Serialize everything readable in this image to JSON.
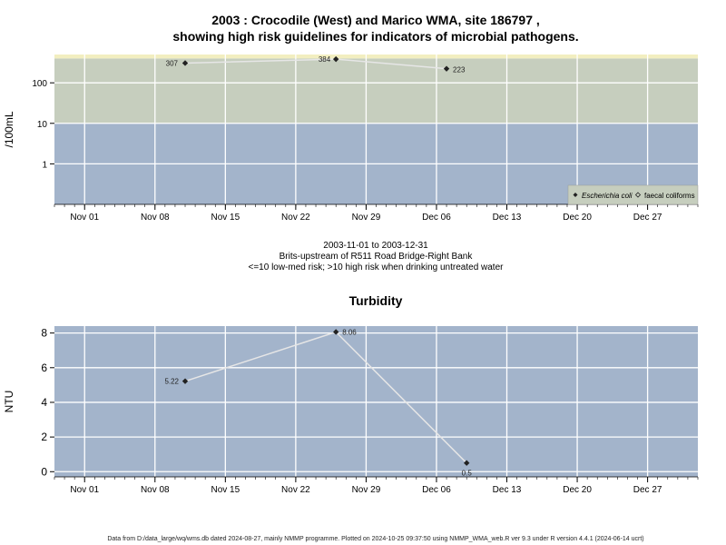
{
  "header": {
    "title_line1": "2003 : Crocodile (West) and Marico WMA, site 186797 ,",
    "title_line2": "showing high risk guidelines for indicators of microbial pathogens."
  },
  "subtitle": {
    "line1": "2003-11-01 to 2003-12-31",
    "line2": "Brits-upstream of R511 Road Bridge-Right Bank",
    "line3": "<=10 low-med risk; >10 high risk when drinking untreated water"
  },
  "footer": {
    "text": "Data from D:/data_large/wq/wms.db dated 2024-08-27, mainly NMMP programme. Plotted on 2024-10-25 09:37:50 using NMMP_WMA_web.R ver 9.3 under R version 4.4.1 (2024-06-14 ucrt)"
  },
  "colors": {
    "low_risk": "#a3b4cb",
    "high_risk": "#c6cebe",
    "top_band": "#f2eec0",
    "line": "#e6e6e6",
    "marker": "#222222"
  },
  "chart_data": [
    {
      "type": "line",
      "title": "",
      "xlabel": "",
      "ylabel": "/100mL",
      "y_scale": "log",
      "ylim": [
        0.1,
        500
      ],
      "y_ticks": [
        "1",
        "10",
        "100"
      ],
      "y_tick_values": [
        1,
        10,
        100
      ],
      "x_range": [
        "2003-10-29",
        "2004-01-01"
      ],
      "x_ticks": [
        "Nov 01",
        "Nov 08",
        "Nov 15",
        "Nov 22",
        "Nov 29",
        "Dec 06",
        "Dec 13",
        "Dec 20",
        "Dec 27"
      ],
      "x_tick_dates": [
        "2003-11-01",
        "2003-11-08",
        "2003-11-15",
        "2003-11-22",
        "2003-11-29",
        "2003-12-06",
        "2003-12-13",
        "2003-12-20",
        "2003-12-27"
      ],
      "bands": [
        {
          "from": 0.1,
          "to": 10,
          "color": "#a3b4cb"
        },
        {
          "from": 10,
          "to": 400,
          "color": "#c6cebe"
        },
        {
          "from": 400,
          "to": 500,
          "color": "#f2eec0"
        }
      ],
      "series": [
        {
          "name": "Escherichia coli",
          "marker": "filled-diamond",
          "points": [
            {
              "x": "2003-11-11",
              "y": 307,
              "label": "307"
            },
            {
              "x": "2003-11-26",
              "y": 384,
              "label": "384"
            },
            {
              "x": "2003-12-07",
              "y": 223,
              "label": "223"
            }
          ]
        }
      ],
      "legend": {
        "placement": "bottom-right",
        "entries": [
          {
            "label": "Escherichia coli",
            "marker": "filled-diamond"
          },
          {
            "label": "faecal coliforms",
            "marker": "open-diamond"
          }
        ]
      }
    },
    {
      "type": "line",
      "title": "Turbidity",
      "xlabel": "",
      "ylabel": "NTU",
      "ylim": [
        -0.3,
        8.4
      ],
      "y_ticks": [
        "0",
        "2",
        "4",
        "6",
        "8"
      ],
      "y_tick_values": [
        0,
        2,
        4,
        6,
        8
      ],
      "x_range": [
        "2003-10-29",
        "2004-01-01"
      ],
      "x_ticks": [
        "Nov 01",
        "Nov 08",
        "Nov 15",
        "Nov 22",
        "Nov 29",
        "Dec 06",
        "Dec 13",
        "Dec 20",
        "Dec 27"
      ],
      "x_tick_dates": [
        "2003-11-01",
        "2003-11-08",
        "2003-11-15",
        "2003-11-22",
        "2003-11-29",
        "2003-12-06",
        "2003-12-13",
        "2003-12-20",
        "2003-12-27"
      ],
      "series": [
        {
          "name": "",
          "marker": "filled-diamond",
          "points": [
            {
              "x": "2003-11-11",
              "y": 5.22,
              "label": "5.22"
            },
            {
              "x": "2003-11-26",
              "y": 8.06,
              "label": "8.06"
            },
            {
              "x": "2003-12-09",
              "y": 0.5,
              "label": "0.5"
            }
          ]
        }
      ]
    }
  ]
}
